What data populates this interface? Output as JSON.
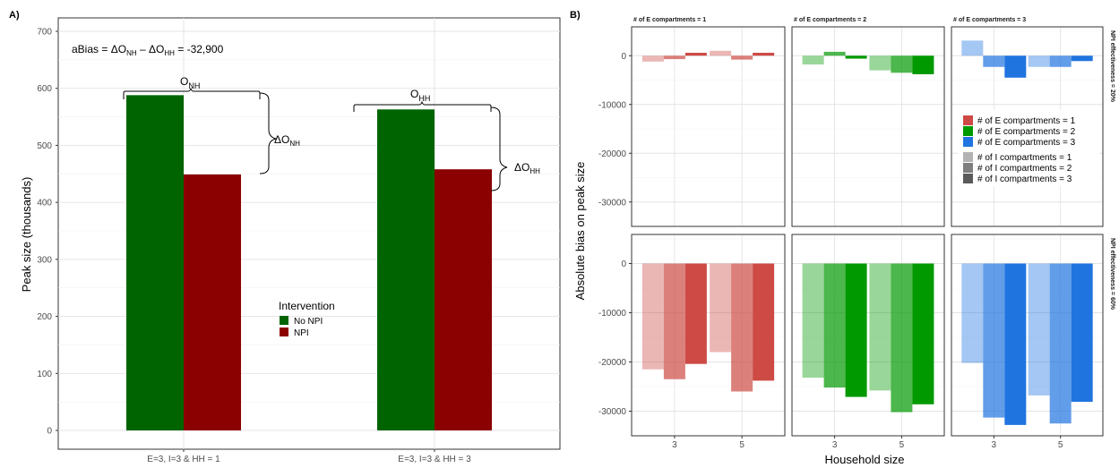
{
  "panel_labels": {
    "a": "A)",
    "b": "B)"
  },
  "chart_data": [
    {
      "type": "bar",
      "panel": "A)",
      "ylabel": "Peak size (thousands)",
      "xlabel": "",
      "ylim": [
        0,
        700
      ],
      "yticks": [
        0,
        100,
        200,
        300,
        400,
        500,
        600,
        700
      ],
      "categories": [
        "E=3, I=3 & HH = 1",
        "E=3, I=3 & HH = 3"
      ],
      "series": [
        {
          "name": "No NPI",
          "values": [
            588,
            563
          ],
          "color": "#006400"
        },
        {
          "name": "NPI",
          "values": [
            449,
            458
          ],
          "color": "#8b0000"
        }
      ],
      "legend": {
        "title": "Intervention",
        "position": "inside-center-right"
      },
      "annotations": {
        "abias_prefix": "aBias = ",
        "abias_value": "-32,900",
        "o_nh": "NH",
        "o_hh": "HH",
        "delta_nh": "NH",
        "delta_hh": "HH"
      },
      "grid": true
    },
    {
      "type": "bar",
      "panel": "B)",
      "xlabel": "Household size",
      "ylabel": "Absolute bias on peak size",
      "x_categories": [
        "3",
        "5"
      ],
      "ylim": [
        -35000,
        5000
      ],
      "yticks": [
        0,
        -10000,
        -20000,
        -30000
      ],
      "facet_columns": [
        "# of E compartments = 1",
        "# of E compartments = 2",
        "# of E compartments = 3"
      ],
      "facet_rows": [
        "NPI effectiveness = 20%",
        "NPI effectiveness = 60%"
      ],
      "colors_E": [
        "#cd4a45",
        "#009900",
        "#1f74e0"
      ],
      "alpha_I": [
        0.4,
        0.7,
        1.0
      ],
      "facets": [
        [
          {
            "hh3": [
              -1200,
              -700,
              600
            ],
            "hh5": [
              1000,
              -800,
              600
            ]
          },
          {
            "hh3": [
              -1800,
              800,
              -600
            ],
            "hh5": [
              -3000,
              -3500,
              -3800
            ]
          },
          {
            "hh3": [
              3100,
              -2300,
              -4500
            ],
            "hh5": [
              -2300,
              -2300,
              -1100
            ]
          }
        ],
        [
          {
            "hh3": [
              -21500,
              -23500,
              -20400
            ],
            "hh5": [
              -18000,
              -26000,
              -23800
            ]
          },
          {
            "hh3": [
              -23200,
              -25200,
              -27100
            ],
            "hh5": [
              -25800,
              -30200,
              -28600
            ]
          },
          {
            "hh3": [
              -20200,
              -31300,
              -32800
            ],
            "hh5": [
              -26800,
              -32500,
              -28100
            ]
          }
        ]
      ],
      "legend": {
        "e_entries": [
          "# of E compartments = 1",
          "# of E compartments = 2",
          "# of E compartments = 3"
        ],
        "i_entries": [
          "# of I compartments = 1",
          "# of I compartments = 2",
          "# of I compartments = 3"
        ],
        "position": "inside-top-right"
      },
      "grid": true
    }
  ]
}
